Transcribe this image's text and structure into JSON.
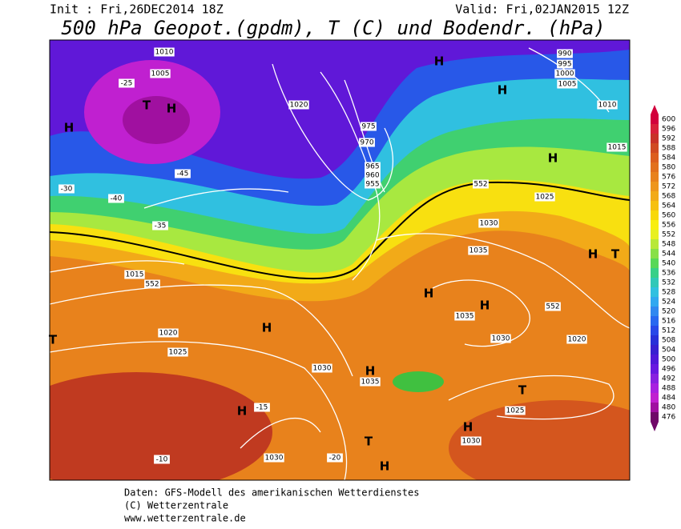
{
  "header": {
    "init": "Init : Fri,26DEC2014 18Z",
    "valid": "Valid: Fri,02JAN2015 12Z",
    "title": "500 hPa Geopot.(gpdm), T (C) und Bodendr. (hPa)"
  },
  "footer": {
    "line1": "Daten: GFS-Modell des amerikanischen Wetterdienstes",
    "line2": "(C) Wetterzentrale",
    "line3": "www.wetterzentrale.de"
  },
  "colorbar": {
    "labels": [
      600,
      596,
      592,
      588,
      584,
      580,
      576,
      572,
      568,
      564,
      560,
      556,
      552,
      548,
      544,
      540,
      536,
      532,
      528,
      524,
      520,
      516,
      512,
      508,
      504,
      500,
      496,
      492,
      488,
      484,
      480,
      476
    ],
    "colors": [
      "#d2003c",
      "#d8203a",
      "#c83228",
      "#d04a22",
      "#dc5e1e",
      "#e2701c",
      "#e8821c",
      "#ee961c",
      "#f2aa18",
      "#f6c010",
      "#f8d808",
      "#f8ee10",
      "#e8f020",
      "#b8e838",
      "#88e048",
      "#58d858",
      "#38d088",
      "#30c8b8",
      "#30c0e0",
      "#30a8f0",
      "#3088f0",
      "#2868f0",
      "#2848e8",
      "#2830d8",
      "#3820d0",
      "#5018d8",
      "#6818e0",
      "#8820e0",
      "#a820e0",
      "#c020d0",
      "#a010a0",
      "#700868"
    ]
  },
  "map_labels": [
    "1010",
    "1005",
    "T",
    "H",
    "H",
    "1020",
    "975",
    "970",
    "965",
    "960",
    "955",
    "1030",
    "1035",
    "H",
    "H",
    "1035",
    "1030",
    "1020",
    "H",
    "1025",
    "1015",
    "H",
    "H",
    "990",
    "995",
    "1000",
    "1005",
    "1010",
    "1015",
    "1020",
    "1025",
    "1030",
    "H",
    "1035",
    "H",
    "T",
    "1025",
    "H",
    "1030",
    "T",
    "H",
    "1030",
    "-10",
    "-15",
    "-20",
    "H",
    "T",
    "H",
    "T",
    "552",
    "552",
    "552",
    "-30",
    "-35",
    "-40",
    "-45",
    "-25"
  ]
}
